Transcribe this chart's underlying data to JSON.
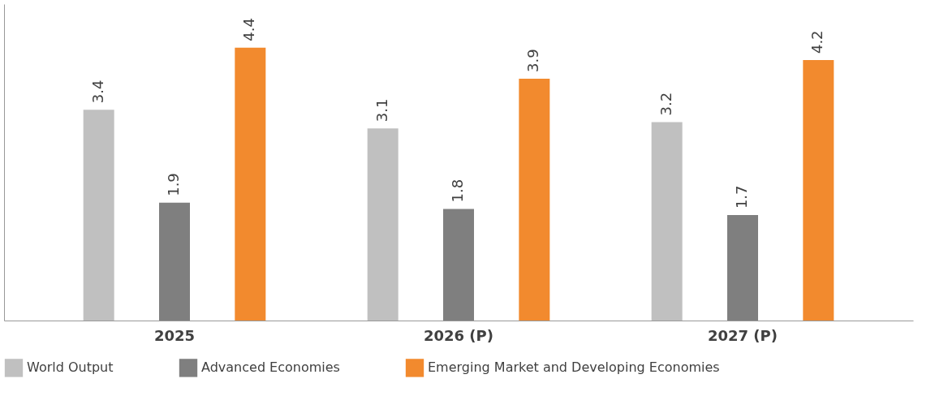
{
  "chart_data": {
    "type": "bar",
    "categories": [
      "2025",
      "2026 (P)",
      "2027 (P)"
    ],
    "series": [
      {
        "name": "World Output",
        "color": "#c0c0c0",
        "values": [
          3.4,
          3.1,
          3.2
        ]
      },
      {
        "name": "Advanced Economies",
        "color": "#7f7f7f",
        "values": [
          1.9,
          1.8,
          1.7
        ]
      },
      {
        "name": "Emerging Market and Developing Economies",
        "color": "#f28a2e",
        "values": [
          4.4,
          3.9,
          4.2
        ]
      }
    ],
    "data_labels": true,
    "legend": "bottom",
    "grid": false,
    "tick_labels": "x"
  }
}
